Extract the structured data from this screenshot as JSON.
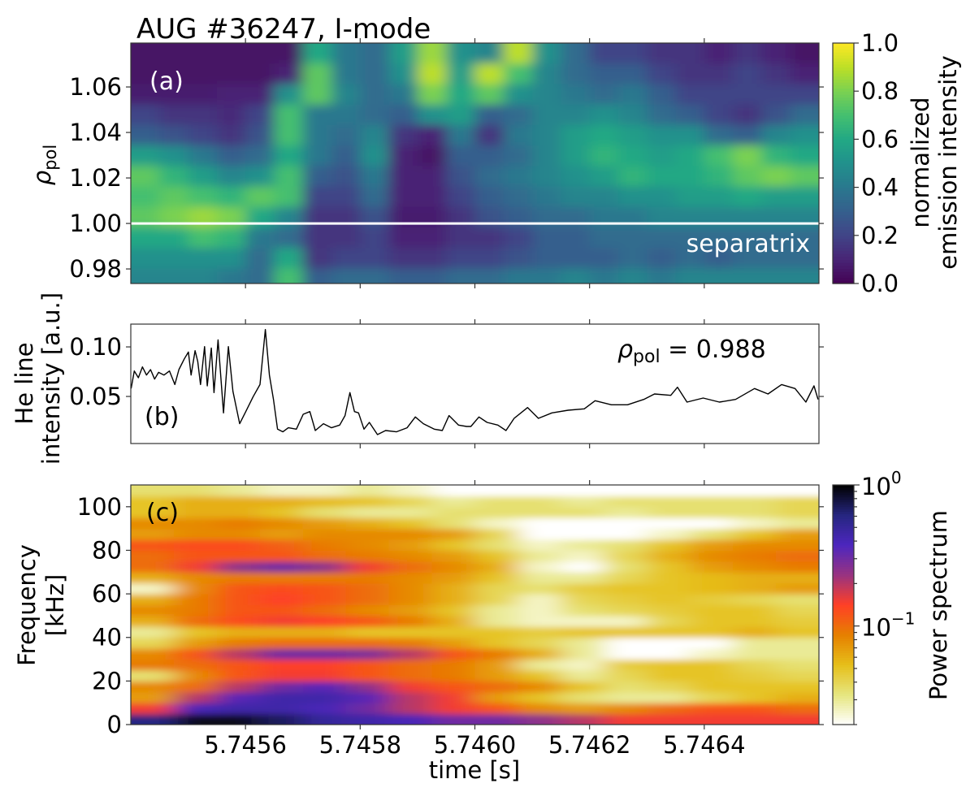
{
  "title": "AUG #36247, I-mode",
  "chart_data": [
    {
      "panel": "a",
      "type": "heatmap",
      "tag": "(a)",
      "ylabel": {
        "symbol": "ρ",
        "sub": "pol"
      },
      "annotation": "separatrix",
      "separatrix_rho": 1.0,
      "xlim": [
        5.7454,
        5.7466
      ],
      "ylim": [
        0.9736,
        1.0793
      ],
      "yticks": [
        0.98,
        1.0,
        1.02,
        1.04,
        1.06
      ],
      "ytick_labels": [
        "0.98",
        "1.00",
        "1.02",
        "1.04",
        "1.06"
      ],
      "x_centers": [
        5.745425,
        5.745475,
        5.745525,
        5.745575,
        5.745625,
        5.745675,
        5.745725,
        5.745775,
        5.745825,
        5.745875,
        5.745925,
        5.745975,
        5.746025,
        5.746075,
        5.746125,
        5.746175,
        5.746225,
        5.746275,
        5.746325,
        5.746375,
        5.746425,
        5.746475,
        5.746525,
        5.746575
      ],
      "y_centers": [
        0.976,
        0.985,
        0.994,
        1.003,
        1.012,
        1.021,
        1.03,
        1.039,
        1.048,
        1.057,
        1.066,
        1.075
      ],
      "z": [
        [
          0.45,
          0.45,
          0.45,
          0.4,
          0.35,
          0.7,
          0.3,
          0.35,
          0.35,
          0.3,
          0.3,
          0.35,
          0.35,
          0.4,
          0.4,
          0.45,
          0.4,
          0.45,
          0.4,
          0.45,
          0.45,
          0.45,
          0.45,
          0.45
        ],
        [
          0.5,
          0.5,
          0.5,
          0.5,
          0.35,
          0.6,
          0.15,
          0.2,
          0.2,
          0.15,
          0.15,
          0.2,
          0.2,
          0.25,
          0.3,
          0.3,
          0.3,
          0.35,
          0.3,
          0.35,
          0.3,
          0.35,
          0.35,
          0.35
        ],
        [
          0.6,
          0.6,
          0.7,
          0.65,
          0.4,
          0.35,
          0.15,
          0.15,
          0.2,
          0.1,
          0.1,
          0.15,
          0.15,
          0.2,
          0.3,
          0.3,
          0.35,
          0.35,
          0.35,
          0.35,
          0.35,
          0.35,
          0.35,
          0.35
        ],
        [
          0.75,
          0.8,
          0.85,
          0.8,
          0.6,
          0.45,
          0.15,
          0.15,
          0.25,
          0.08,
          0.08,
          0.15,
          0.25,
          0.3,
          0.35,
          0.35,
          0.4,
          0.4,
          0.45,
          0.45,
          0.45,
          0.45,
          0.45,
          0.45
        ],
        [
          0.7,
          0.75,
          0.7,
          0.65,
          0.75,
          0.7,
          0.2,
          0.2,
          0.35,
          0.1,
          0.1,
          0.2,
          0.3,
          0.35,
          0.4,
          0.45,
          0.45,
          0.5,
          0.5,
          0.55,
          0.55,
          0.6,
          0.55,
          0.55
        ],
        [
          0.75,
          0.65,
          0.55,
          0.45,
          0.5,
          0.7,
          0.3,
          0.25,
          0.4,
          0.1,
          0.1,
          0.25,
          0.35,
          0.4,
          0.45,
          0.5,
          0.55,
          0.65,
          0.6,
          0.6,
          0.65,
          0.75,
          0.8,
          0.75
        ],
        [
          0.55,
          0.5,
          0.4,
          0.3,
          0.35,
          0.6,
          0.4,
          0.3,
          0.5,
          0.1,
          0.05,
          0.3,
          0.3,
          0.35,
          0.45,
          0.55,
          0.65,
          0.6,
          0.55,
          0.6,
          0.7,
          0.8,
          0.65,
          0.6
        ],
        [
          0.3,
          0.25,
          0.2,
          0.15,
          0.25,
          0.7,
          0.4,
          0.35,
          0.45,
          0.15,
          0.1,
          0.4,
          0.15,
          0.4,
          0.45,
          0.55,
          0.6,
          0.55,
          0.5,
          0.5,
          0.35,
          0.3,
          0.45,
          0.5
        ],
        [
          0.2,
          0.15,
          0.15,
          0.12,
          0.2,
          0.7,
          0.4,
          0.4,
          0.35,
          0.3,
          0.5,
          0.55,
          0.3,
          0.35,
          0.45,
          0.45,
          0.5,
          0.45,
          0.35,
          0.3,
          0.2,
          0.15,
          0.25,
          0.35
        ],
        [
          0.08,
          0.08,
          0.08,
          0.1,
          0.1,
          0.5,
          0.75,
          0.45,
          0.35,
          0.4,
          0.8,
          0.6,
          0.75,
          0.5,
          0.45,
          0.4,
          0.35,
          0.4,
          0.3,
          0.2,
          0.2,
          0.2,
          0.2,
          0.2
        ],
        [
          0.05,
          0.05,
          0.05,
          0.05,
          0.05,
          0.1,
          0.75,
          0.4,
          0.35,
          0.5,
          0.9,
          0.55,
          0.9,
          0.7,
          0.45,
          0.35,
          0.3,
          0.3,
          0.2,
          0.15,
          0.15,
          0.2,
          0.15,
          0.1
        ],
        [
          0.05,
          0.05,
          0.05,
          0.05,
          0.05,
          0.05,
          0.6,
          0.4,
          0.35,
          0.55,
          0.85,
          0.5,
          0.45,
          0.9,
          0.5,
          0.35,
          0.2,
          0.2,
          0.15,
          0.15,
          0.1,
          0.15,
          0.1,
          0.05
        ]
      ],
      "colorbar": {
        "colormap": "viridis",
        "range": [
          0.0,
          1.0
        ],
        "ticks": [
          0.0,
          0.2,
          0.4,
          0.6,
          0.8,
          1.0
        ],
        "tick_labels": [
          "0.0",
          "0.2",
          "0.4",
          "0.6",
          "0.8",
          "1.0"
        ],
        "label_lines": [
          "normalized",
          "emission intensity"
        ]
      }
    },
    {
      "panel": "b",
      "type": "line",
      "tag": "(b)",
      "ylabel_lines": [
        "He line",
        "intensity [a.u.]"
      ],
      "annotation": {
        "symbol": "ρ",
        "sub": "pol",
        "text": " = 0.988"
      },
      "xlim": [
        5.7454,
        5.7466
      ],
      "ylim": [
        0.0025,
        0.123
      ],
      "yticks": [
        0.05,
        0.1
      ],
      "ytick_labels": [
        "0.05",
        "0.10"
      ],
      "color": "#000000",
      "x": [
        5.7454005,
        5.7454061,
        5.7454132,
        5.7454203,
        5.7454273,
        5.7454344,
        5.7454415,
        5.7454485,
        5.745458,
        5.7454674,
        5.7454768,
        5.7454839,
        5.7454933,
        5.7455004,
        5.7455051,
        5.7455121,
        5.7455168,
        5.7455216,
        5.7455286,
        5.7455333,
        5.7455404,
        5.7455451,
        5.7455522,
        5.7455616,
        5.7455701,
        5.7455781,
        5.7455899,
        5.7455993,
        5.7456134,
        5.7456252,
        5.7456346,
        5.7456417,
        5.7456488,
        5.7456558,
        5.7456652,
        5.7456747,
        5.7456888,
        5.7457006,
        5.7457123,
        5.7457218,
        5.7457359,
        5.74575,
        5.7457642,
        5.7457736,
        5.7457821,
        5.7457901,
        5.7457971,
        5.7458066,
        5.745816,
        5.7458301,
        5.7458443,
        5.7458631,
        5.7458819,
        5.7458961,
        5.7459102,
        5.745929,
        5.7459432,
        5.7459549,
        5.7459714,
        5.7459856,
        5.745993,
        5.7460071,
        5.7460213,
        5.7460401,
        5.7460542,
        5.7460684,
        5.7460919,
        5.7461108,
        5.7461343,
        5.7461626,
        5.7461909,
        5.7462097,
        5.746238,
        5.7462662,
        5.7462945,
        5.7463133,
        5.7463416,
        5.7463534,
        5.7463699,
        5.7463981,
        5.7464264,
        5.7464547,
        5.7464877,
        5.7465112,
        5.7465348,
        5.7465583,
        5.7465772,
        5.7465913,
        5.7465984
      ],
      "y": [
        0.058,
        0.0757,
        0.0689,
        0.0798,
        0.0716,
        0.0771,
        0.0675,
        0.0743,
        0.0716,
        0.0757,
        0.062,
        0.0771,
        0.088,
        0.0948,
        0.0716,
        0.0962,
        0.0853,
        0.062,
        0.1003,
        0.0607,
        0.0989,
        0.0539,
        0.1071,
        0.0334,
        0.1003,
        0.0552,
        0.0225,
        0.0334,
        0.0498,
        0.062,
        0.1175,
        0.0716,
        0.047,
        0.017,
        0.0143,
        0.0184,
        0.017,
        0.032,
        0.0347,
        0.0156,
        0.0225,
        0.0184,
        0.0211,
        0.0307,
        0.0539,
        0.0347,
        0.0334,
        0.017,
        0.0238,
        0.0115,
        0.0156,
        0.0143,
        0.0184,
        0.0293,
        0.0225,
        0.017,
        0.0156,
        0.0307,
        0.0211,
        0.0197,
        0.0197,
        0.0293,
        0.0238,
        0.0211,
        0.0156,
        0.0279,
        0.0388,
        0.0279,
        0.0334,
        0.0361,
        0.0375,
        0.0457,
        0.0416,
        0.0416,
        0.047,
        0.0525,
        0.0511,
        0.0593,
        0.0443,
        0.0484,
        0.0443,
        0.047,
        0.058,
        0.0525,
        0.062,
        0.058,
        0.0443,
        0.0607,
        0.047
      ]
    },
    {
      "panel": "c",
      "type": "heatmap",
      "tag": "(c)",
      "ylabel_lines": [
        "Frequency",
        "[kHz]"
      ],
      "xlabel": "time [s]",
      "xlim": [
        5.7454,
        5.7466
      ],
      "ylim": [
        0,
        110
      ],
      "xticks": [
        5.7456,
        5.7458,
        5.746,
        5.7462,
        5.7464
      ],
      "xtick_labels": [
        "5.7456",
        "5.7458",
        "5.7460",
        "5.7462",
        "5.7464"
      ],
      "yticks": [
        0,
        20,
        40,
        60,
        80,
        100
      ],
      "ytick_labels": [
        "0",
        "20",
        "40",
        "60",
        "80",
        "100"
      ],
      "x_centers": [
        5.7454375,
        5.7455125,
        5.7455875,
        5.7456625,
        5.7457375,
        5.7458125,
        5.7458875,
        5.7459625,
        5.7460375,
        5.7461125,
        5.7461875,
        5.7462625,
        5.7463375,
        5.7464125,
        5.7464875,
        5.7465625
      ],
      "y_centers": [
        2.5,
        7.5,
        12.5,
        17.5,
        22.5,
        27.5,
        32.5,
        37.5,
        42.5,
        47.5,
        52.5,
        57.5,
        62.5,
        67.5,
        72.5,
        77.5,
        82.5,
        87.5,
        92.5,
        97.5,
        102.5,
        107.5
      ],
      "z": [
        [
          0.6,
          0.9,
          0.9,
          0.7,
          0.5,
          0.45,
          0.4,
          0.3,
          0.3,
          0.25,
          0.2,
          0.15,
          0.15,
          0.15,
          0.15,
          0.15
        ],
        [
          0.15,
          0.4,
          0.45,
          0.45,
          0.4,
          0.3,
          0.2,
          0.15,
          0.12,
          0.08,
          0.07,
          0.08,
          0.1,
          0.12,
          0.12,
          0.1
        ],
        [
          0.07,
          0.2,
          0.35,
          0.45,
          0.45,
          0.35,
          0.2,
          0.15,
          0.07,
          0.05,
          0.035,
          0.03,
          0.03,
          0.04,
          0.05,
          0.06
        ],
        [
          0.08,
          0.1,
          0.2,
          0.3,
          0.35,
          0.25,
          0.15,
          0.12,
          0.1,
          0.08,
          0.05,
          0.035,
          0.04,
          0.05,
          0.05,
          0.05
        ],
        [
          0.035,
          0.08,
          0.12,
          0.15,
          0.15,
          0.12,
          0.1,
          0.09,
          0.07,
          0.05,
          0.03,
          0.04,
          0.05,
          0.05,
          0.045,
          0.04
        ],
        [
          0.09,
          0.1,
          0.12,
          0.14,
          0.14,
          0.12,
          0.1,
          0.09,
          0.07,
          0.03,
          0.025,
          0.045,
          0.05,
          0.05,
          0.04,
          0.035
        ],
        [
          0.08,
          0.12,
          0.2,
          0.3,
          0.3,
          0.28,
          0.2,
          0.12,
          0.09,
          0.06,
          0.03,
          0.02,
          0.02,
          0.025,
          0.03,
          0.03
        ],
        [
          0.04,
          0.07,
          0.09,
          0.1,
          0.1,
          0.1,
          0.09,
          0.07,
          0.05,
          0.04,
          0.03,
          0.02,
          0.02,
          0.02,
          0.03,
          0.03
        ],
        [
          0.03,
          0.05,
          0.06,
          0.06,
          0.06,
          0.05,
          0.05,
          0.05,
          0.05,
          0.045,
          0.05,
          0.05,
          0.05,
          0.05,
          0.06,
          0.05
        ],
        [
          0.06,
          0.1,
          0.13,
          0.15,
          0.14,
          0.12,
          0.09,
          0.06,
          0.03,
          0.025,
          0.025,
          0.025,
          0.04,
          0.05,
          0.05,
          0.045
        ],
        [
          0.08,
          0.09,
          0.12,
          0.12,
          0.1,
          0.08,
          0.07,
          0.05,
          0.03,
          0.025,
          0.035,
          0.04,
          0.045,
          0.05,
          0.05,
          0.04
        ],
        [
          0.06,
          0.09,
          0.12,
          0.14,
          0.12,
          0.1,
          0.08,
          0.06,
          0.04,
          0.025,
          0.04,
          0.045,
          0.05,
          0.045,
          0.04,
          0.035
        ],
        [
          0.025,
          0.08,
          0.12,
          0.13,
          0.12,
          0.1,
          0.08,
          0.06,
          0.04,
          0.035,
          0.045,
          0.05,
          0.05,
          0.055,
          0.06,
          0.07
        ],
        [
          0.06,
          0.08,
          0.09,
          0.09,
          0.09,
          0.09,
          0.08,
          0.07,
          0.05,
          0.03,
          0.03,
          0.04,
          0.05,
          0.055,
          0.06,
          0.06
        ],
        [
          0.1,
          0.15,
          0.25,
          0.3,
          0.25,
          0.15,
          0.1,
          0.08,
          0.06,
          0.025,
          0.02,
          0.035,
          0.05,
          0.07,
          0.08,
          0.09
        ],
        [
          0.1,
          0.12,
          0.12,
          0.12,
          0.1,
          0.09,
          0.08,
          0.07,
          0.05,
          0.03,
          0.025,
          0.04,
          0.06,
          0.08,
          0.09,
          0.1
        ],
        [
          0.12,
          0.13,
          0.13,
          0.11,
          0.09,
          0.08,
          0.07,
          0.05,
          0.035,
          0.025,
          0.03,
          0.035,
          0.05,
          0.07,
          0.08,
          0.08
        ],
        [
          0.07,
          0.08,
          0.08,
          0.07,
          0.08,
          0.08,
          0.08,
          0.07,
          0.04,
          0.02,
          0.02,
          0.02,
          0.025,
          0.035,
          0.05,
          0.07
        ],
        [
          0.08,
          0.08,
          0.09,
          0.08,
          0.07,
          0.06,
          0.05,
          0.035,
          0.025,
          0.02,
          0.02,
          0.02,
          0.02,
          0.02,
          0.025,
          0.03
        ],
        [
          0.05,
          0.06,
          0.06,
          0.05,
          0.035,
          0.03,
          0.03,
          0.035,
          0.035,
          0.035,
          0.035,
          0.03,
          0.035,
          0.035,
          0.035,
          0.04
        ],
        [
          0.05,
          0.06,
          0.06,
          0.06,
          0.055,
          0.05,
          0.04,
          0.03,
          0.035,
          0.035,
          0.03,
          0.035,
          0.035,
          0.035,
          0.035,
          0.04
        ],
        [
          0.035,
          0.035,
          0.03,
          0.025,
          0.025,
          0.03,
          0.025,
          0.02,
          0.02,
          0.02,
          0.02,
          0.02,
          0.02,
          0.02,
          0.02,
          0.02
        ]
      ],
      "colorbar": {
        "colormap": "CMRmap_r",
        "scale": "log",
        "range": [
          0.02,
          1.0
        ],
        "major_ticks": [
          1.0,
          0.1
        ],
        "major_tick_labels": [
          {
            "base": "10",
            "exp": "0"
          },
          {
            "base": "10",
            "exp": "−1"
          }
        ],
        "label": "Power spectrum"
      }
    }
  ]
}
